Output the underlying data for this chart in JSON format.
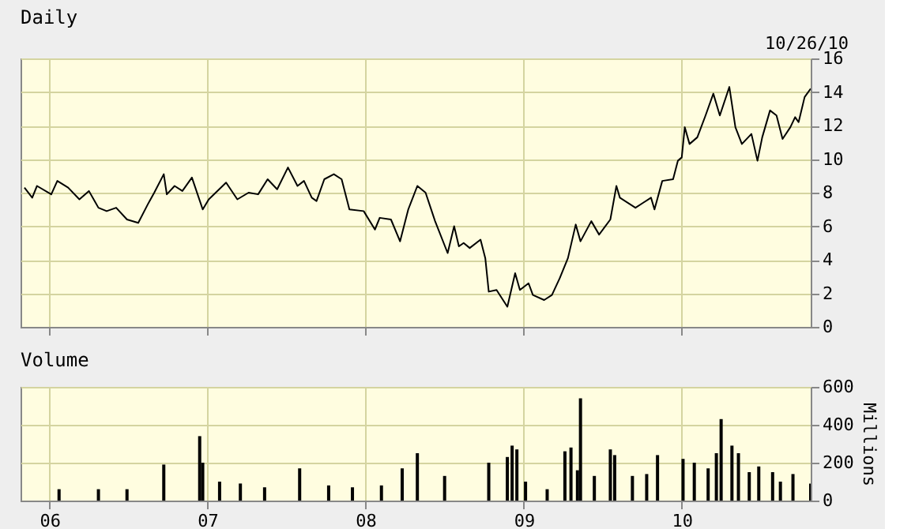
{
  "chart_data": [
    {
      "type": "line",
      "title": "Daily",
      "annotations": [
        "10/26/10"
      ],
      "color": "#000000",
      "grid": true,
      "tick_labels": "y",
      "xlim": [
        "2005-10-26",
        "2010-10-26"
      ],
      "xticks": [
        {
          "value": "2006-01-01",
          "label": null
        },
        {
          "value": "2007-01-01",
          "label": null
        },
        {
          "value": "2008-01-01",
          "label": null
        },
        {
          "value": "2009-01-01",
          "label": null
        },
        {
          "value": "2010-01-01",
          "label": null
        }
      ],
      "ylim": [
        0,
        16
      ],
      "yticks": [
        0,
        2,
        4,
        6,
        8,
        10,
        12,
        14,
        16
      ],
      "x": [
        "2005-11-04",
        "2005-11-22",
        "2005-12-03",
        "2006-01-05",
        "2006-01-19",
        "2006-02-13",
        "2006-03-11",
        "2006-04-02",
        "2006-04-24",
        "2006-05-13",
        "2006-06-04",
        "2006-06-29",
        "2006-07-25",
        "2006-08-16",
        "2006-08-31",
        "2006-09-22",
        "2006-09-29",
        "2006-10-17",
        "2006-11-04",
        "2006-11-26",
        "2006-12-21",
        "2007-01-04",
        "2007-02-13",
        "2007-03-11",
        "2007-04-06",
        "2007-04-28",
        "2007-05-20",
        "2007-06-11",
        "2007-07-06",
        "2007-07-28",
        "2007-08-12",
        "2007-08-30",
        "2007-09-10",
        "2007-09-28",
        "2007-10-20",
        "2007-11-07",
        "2007-11-25",
        "2007-12-28",
        "2008-01-23",
        "2008-02-03",
        "2008-02-29",
        "2008-03-21",
        "2008-04-09",
        "2008-04-30",
        "2008-05-19",
        "2008-06-10",
        "2008-07-09",
        "2008-07-24",
        "2008-08-04",
        "2008-08-15",
        "2008-08-29",
        "2008-09-23",
        "2008-10-04",
        "2008-10-12",
        "2008-10-30",
        "2008-11-24",
        "2008-12-12",
        "2008-12-23",
        "2009-01-12",
        "2009-01-22",
        "2009-02-17",
        "2009-03-07",
        "2009-03-25",
        "2009-04-13",
        "2009-05-01",
        "2009-05-12",
        "2009-06-06",
        "2009-06-24",
        "2009-07-20",
        "2009-08-03",
        "2009-08-11",
        "2009-09-16",
        "2009-10-04",
        "2009-10-22",
        "2009-10-30",
        "2009-11-17",
        "2009-12-12",
        "2009-12-23",
        "2010-01-01",
        "2010-01-08",
        "2010-01-19",
        "2010-02-06",
        "2010-02-25",
        "2010-03-15",
        "2010-03-30",
        "2010-04-21",
        "2010-05-05",
        "2010-05-20",
        "2010-06-11",
        "2010-06-25",
        "2010-07-06",
        "2010-07-24",
        "2010-08-08",
        "2010-08-22",
        "2010-09-09",
        "2010-09-20",
        "2010-09-28",
        "2010-10-12",
        "2010-10-26"
      ],
      "values": [
        8.3,
        7.7,
        8.4,
        7.9,
        8.7,
        8.3,
        7.6,
        8.1,
        7.1,
        6.9,
        7.1,
        6.4,
        6.2,
        7.3,
        8.0,
        9.1,
        7.9,
        8.4,
        8.1,
        8.9,
        7.0,
        7.6,
        8.6,
        7.6,
        8.0,
        7.9,
        8.8,
        8.2,
        9.5,
        8.4,
        8.7,
        7.7,
        7.5,
        8.8,
        9.1,
        8.8,
        7.0,
        6.9,
        5.8,
        6.5,
        6.4,
        5.1,
        7.0,
        8.4,
        8.0,
        6.3,
        4.4,
        6.0,
        4.8,
        5.0,
        4.7,
        5.2,
        4.1,
        2.1,
        2.2,
        1.2,
        3.2,
        2.2,
        2.6,
        1.9,
        1.6,
        1.9,
        2.9,
        4.1,
        6.1,
        5.1,
        6.3,
        5.5,
        6.4,
        8.4,
        7.7,
        7.1,
        7.4,
        7.7,
        7.0,
        8.7,
        8.8,
        9.9,
        10.1,
        11.9,
        10.9,
        11.3,
        12.6,
        13.9,
        12.6,
        14.3,
        11.9,
        10.9,
        11.5,
        9.9,
        11.3,
        12.9,
        12.6,
        11.2,
        11.9,
        12.5,
        12.2,
        13.7,
        14.2
      ]
    },
    {
      "type": "bar",
      "title": "Volume",
      "ylabel": "Millions",
      "color": "#000000",
      "grid": true,
      "xlim": [
        "2005-10-26",
        "2010-10-26"
      ],
      "xticks": [
        {
          "value": "2006-01-01",
          "label": "06"
        },
        {
          "value": "2007-01-01",
          "label": "07"
        },
        {
          "value": "2008-01-01",
          "label": "08"
        },
        {
          "value": "2009-01-01",
          "label": "09"
        },
        {
          "value": "2010-01-01",
          "label": "10"
        }
      ],
      "ylim": [
        0,
        600
      ],
      "yticks": [
        0,
        200,
        400,
        600
      ],
      "x": [
        "2006-01-23",
        "2006-04-24",
        "2006-06-29",
        "2006-09-22",
        "2006-12-14",
        "2006-12-21",
        "2007-01-29",
        "2007-03-18",
        "2007-05-13",
        "2007-08-02",
        "2007-10-08",
        "2007-12-02",
        "2008-02-07",
        "2008-03-26",
        "2008-04-30",
        "2008-07-02",
        "2008-10-12",
        "2008-11-24",
        "2008-12-05",
        "2008-12-16",
        "2009-01-05",
        "2009-02-24",
        "2009-04-06",
        "2009-04-20",
        "2009-05-05",
        "2009-05-12",
        "2009-06-13",
        "2009-07-20",
        "2009-07-30",
        "2009-09-09",
        "2009-10-12",
        "2009-11-06",
        "2010-01-04",
        "2010-01-30",
        "2010-03-03",
        "2010-03-22",
        "2010-04-02",
        "2010-04-27",
        "2010-05-12",
        "2010-06-06",
        "2010-06-28",
        "2010-07-30",
        "2010-08-17",
        "2010-09-15",
        "2010-10-26"
      ],
      "values": [
        60,
        60,
        60,
        190,
        340,
        200,
        100,
        90,
        70,
        170,
        80,
        70,
        80,
        170,
        250,
        130,
        200,
        230,
        290,
        270,
        100,
        60,
        260,
        280,
        160,
        540,
        130,
        270,
        240,
        130,
        140,
        240,
        220,
        200,
        170,
        250,
        430,
        290,
        250,
        150,
        180,
        150,
        100,
        140,
        90
      ]
    }
  ]
}
